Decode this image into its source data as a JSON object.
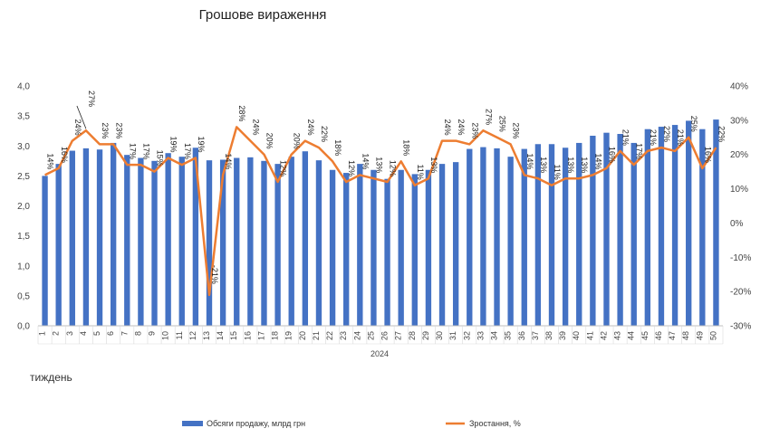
{
  "chart_data": {
    "type": "bar+line",
    "title": "Грошове вираження",
    "x_group_label": "2024",
    "x_axis_side_label": "тиждень",
    "categories": [
      "1",
      "2",
      "3",
      "4",
      "5",
      "6",
      "7",
      "8",
      "9",
      "10",
      "11",
      "12",
      "13",
      "14",
      "15",
      "16",
      "17",
      "18",
      "19",
      "20",
      "21",
      "22",
      "23",
      "24",
      "25",
      "26",
      "27",
      "28",
      "29",
      "30",
      "31",
      "32",
      "33",
      "34",
      "35",
      "36",
      "37",
      "38",
      "39",
      "40",
      "41",
      "42",
      "43",
      "44",
      "45",
      "46",
      "47",
      "48",
      "49",
      "50"
    ],
    "y_left": {
      "range": [
        0,
        4.0
      ],
      "ticks": [
        "0,0",
        "0,5",
        "1,0",
        "1,5",
        "2,0",
        "2,5",
        "3,0",
        "3,5",
        "4,0"
      ]
    },
    "y_right": {
      "range": [
        -30,
        40
      ],
      "ticks": [
        "-30%",
        "-20%",
        "-10%",
        "0%",
        "10%",
        "20%",
        "30%",
        "40%"
      ]
    },
    "series": [
      {
        "name": "Обсяги продажу, млрд грн",
        "kind": "bar",
        "color": "#4472C4",
        "values": [
          2.5,
          2.7,
          2.92,
          2.96,
          2.94,
          3.05,
          2.85,
          2.8,
          2.75,
          2.88,
          2.82,
          2.97,
          2.76,
          2.77,
          2.8,
          2.81,
          2.75,
          2.7,
          2.82,
          2.91,
          2.76,
          2.6,
          2.55,
          2.7,
          2.6,
          2.45,
          2.6,
          2.53,
          2.6,
          2.7,
          2.73,
          2.95,
          2.98,
          2.96,
          2.82,
          2.95,
          3.03,
          3.03,
          2.97,
          3.05,
          3.17,
          3.22,
          3.2,
          3.05,
          3.28,
          3.32,
          3.35,
          3.42,
          3.28,
          3.44
        ]
      },
      {
        "name": "Зростання, %",
        "kind": "line",
        "color": "#ED7D31",
        "values": [
          14,
          16,
          24,
          27,
          23,
          23,
          17,
          17,
          15,
          19,
          17,
          19,
          -21,
          14,
          28,
          24,
          20,
          12,
          20,
          24,
          22,
          18,
          12,
          14,
          13,
          12,
          18,
          11,
          13,
          24,
          24,
          23,
          27,
          25,
          23,
          14,
          13,
          11,
          13,
          13,
          14,
          16,
          21,
          17,
          21,
          22,
          21,
          25,
          16,
          22
        ],
        "labels": [
          "14%",
          "16%",
          "24%",
          "27%",
          "23%",
          "23%",
          "17%",
          "17%",
          "15%",
          "19%",
          "17%",
          "19%",
          "-21%",
          "14%",
          "28%",
          "24%",
          "20%",
          "12%",
          "20%",
          "24%",
          "22%",
          "18%",
          "12%",
          "14%",
          "13%",
          "12%",
          "18%",
          "11%",
          "13%",
          "24%",
          "24%",
          "23%",
          "27%",
          "25%",
          "23%",
          "14%",
          "13%",
          "11%",
          "13%",
          "13%",
          "14%",
          "16%",
          "21%",
          "17%",
          "21%",
          "22%",
          "21%",
          "25%",
          "16%",
          "22%"
        ]
      }
    ],
    "legend": {
      "position": "bottom"
    },
    "grid": false
  }
}
